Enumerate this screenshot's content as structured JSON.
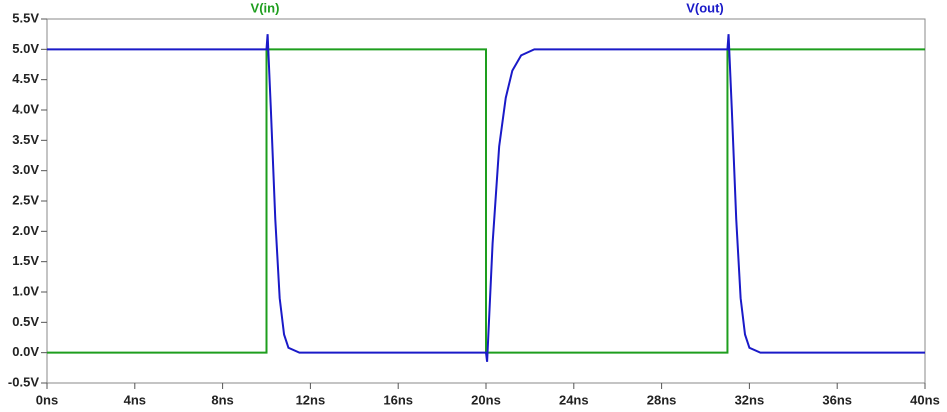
{
  "chart_data": {
    "type": "line",
    "xlim": [
      0,
      40
    ],
    "xticks": [
      {
        "value": 0,
        "label": "0ns"
      },
      {
        "value": 4,
        "label": "4ns"
      },
      {
        "value": 8,
        "label": "8ns"
      },
      {
        "value": 12,
        "label": "12ns"
      },
      {
        "value": 16,
        "label": "16ns"
      },
      {
        "value": 20,
        "label": "20ns"
      },
      {
        "value": 24,
        "label": "24ns"
      },
      {
        "value": 28,
        "label": "28ns"
      },
      {
        "value": 32,
        "label": "32ns"
      },
      {
        "value": 36,
        "label": "36ns"
      },
      {
        "value": 40,
        "label": "40ns"
      }
    ],
    "ylim": [
      -0.5,
      5.5
    ],
    "yticks": [
      {
        "value": 5.5,
        "label": "5.5V"
      },
      {
        "value": 5.0,
        "label": "5.0V"
      },
      {
        "value": 4.5,
        "label": "4.5V"
      },
      {
        "value": 4.0,
        "label": "4.0V"
      },
      {
        "value": 3.5,
        "label": "3.5V"
      },
      {
        "value": 3.0,
        "label": "3.0V"
      },
      {
        "value": 2.5,
        "label": "2.5V"
      },
      {
        "value": 2.0,
        "label": "2.0V"
      },
      {
        "value": 1.5,
        "label": "1.5V"
      },
      {
        "value": 1.0,
        "label": "1.0V"
      },
      {
        "value": 0.5,
        "label": "0.5V"
      },
      {
        "value": 0.0,
        "label": "0.0V"
      },
      {
        "value": -0.5,
        "label": "-0.5V"
      }
    ],
    "grid": false,
    "series": [
      {
        "name": "V(in)",
        "color": "#1e9e1e",
        "x": [
          0,
          10,
          10,
          20,
          20,
          31,
          31,
          40
        ],
        "values": [
          0,
          0,
          5,
          5,
          0,
          0,
          5,
          5
        ]
      },
      {
        "name": "V(out)",
        "color": "#1a1ac8",
        "x": [
          0,
          10,
          10.05,
          10.2,
          10.4,
          10.6,
          10.8,
          11,
          11.5,
          20,
          20.05,
          20.3,
          20.6,
          20.9,
          21.2,
          21.6,
          22.2,
          31,
          31.05,
          31.2,
          31.4,
          31.6,
          31.8,
          32,
          32.5,
          40
        ],
        "values": [
          5,
          5,
          5.25,
          4.0,
          2.2,
          0.9,
          0.3,
          0.08,
          0,
          0,
          -0.15,
          1.8,
          3.4,
          4.2,
          4.65,
          4.9,
          5,
          5,
          5.25,
          4.0,
          2.2,
          0.9,
          0.3,
          0.08,
          0,
          0
        ]
      }
    ]
  }
}
